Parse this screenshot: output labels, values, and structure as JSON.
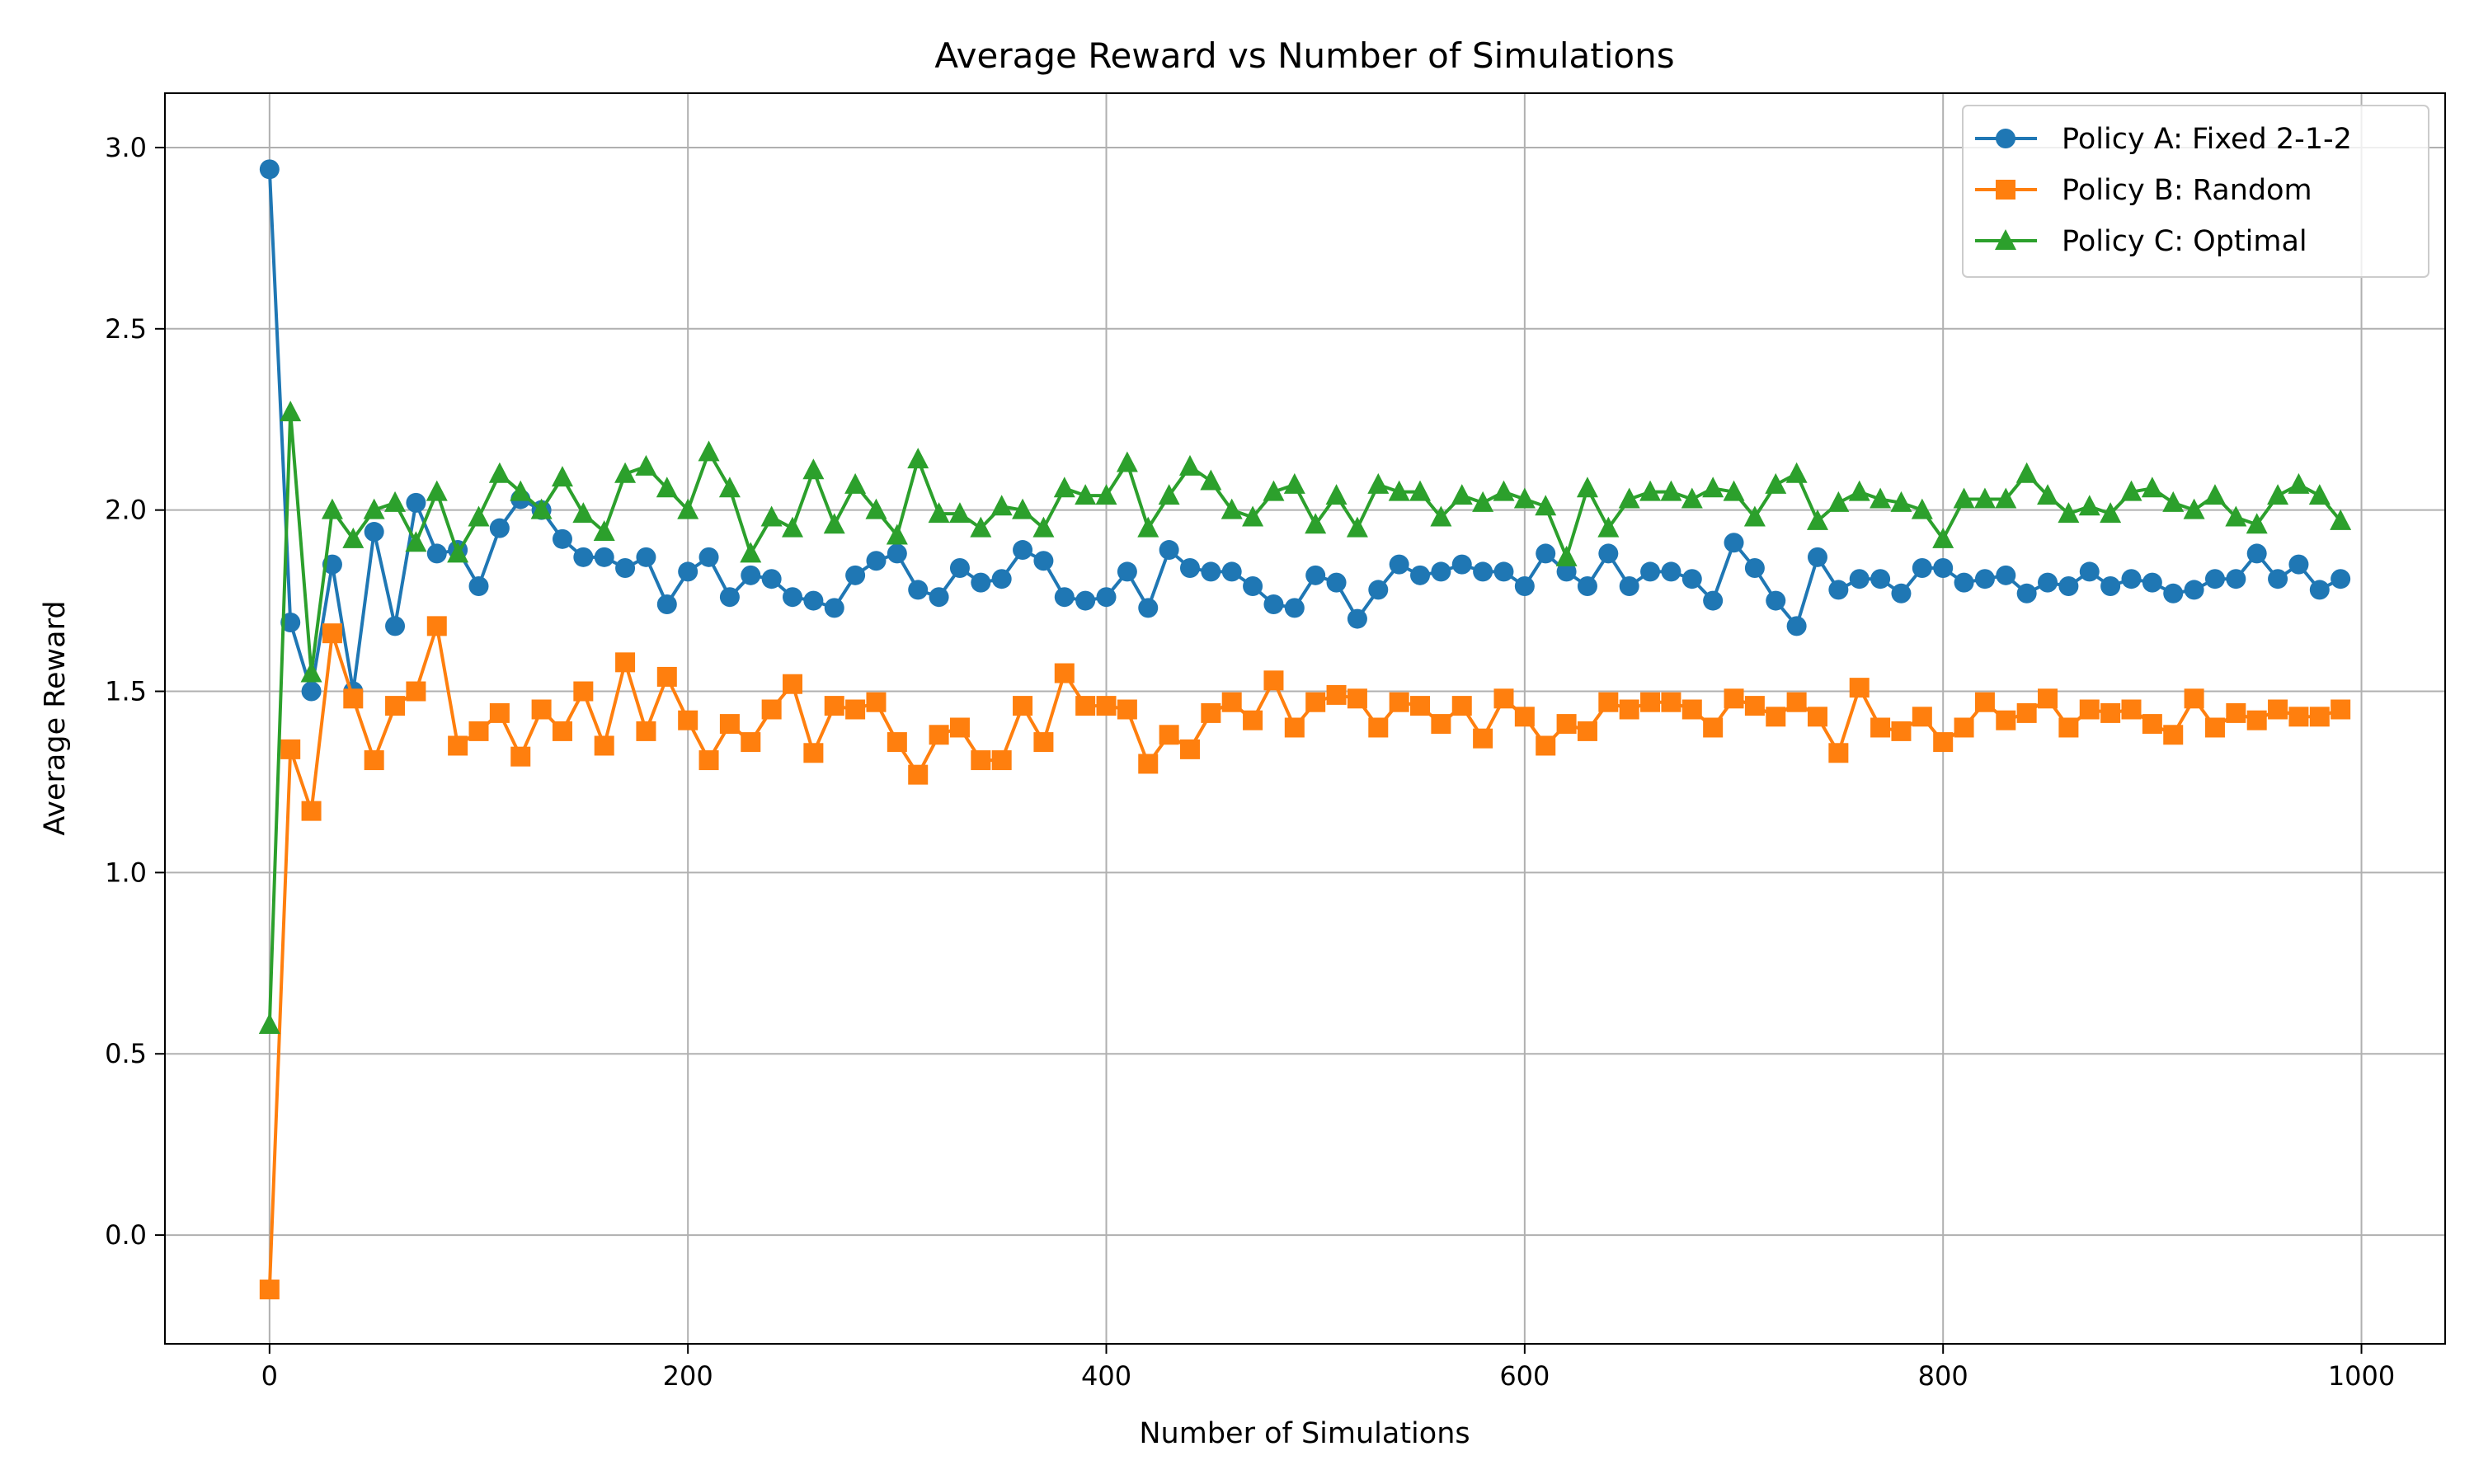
{
  "chart_data": {
    "type": "line",
    "title": "Average Reward vs Number of Simulations",
    "xlabel": "Number of Simulations",
    "ylabel": "Average Reward",
    "xlim": [
      -50,
      1040
    ],
    "ylim": [
      -0.3,
      3.15
    ],
    "xticks": [
      0,
      200,
      400,
      600,
      800,
      1000
    ],
    "xtick_labels": [
      "0",
      "200",
      "400",
      "600",
      "800",
      "1000"
    ],
    "yticks": [
      0.0,
      0.5,
      1.0,
      1.5,
      2.0,
      2.5,
      3.0
    ],
    "ytick_labels": [
      "0.0",
      "0.5",
      "1.0",
      "1.5",
      "2.0",
      "2.5",
      "3.0"
    ],
    "grid": true,
    "legend_position": "top-right",
    "x": [
      0,
      10,
      20,
      30,
      40,
      50,
      60,
      70,
      80,
      90,
      100,
      110,
      120,
      130,
      140,
      150,
      160,
      170,
      180,
      190,
      200,
      210,
      220,
      230,
      240,
      250,
      260,
      270,
      280,
      290,
      300,
      310,
      320,
      330,
      340,
      350,
      360,
      370,
      380,
      390,
      400,
      410,
      420,
      430,
      440,
      450,
      460,
      470,
      480,
      490,
      500,
      510,
      520,
      530,
      540,
      550,
      560,
      570,
      580,
      590,
      600,
      610,
      620,
      630,
      640,
      650,
      660,
      670,
      680,
      690,
      700,
      710,
      720,
      730,
      740,
      750,
      760,
      770,
      780,
      790,
      800,
      810,
      820,
      830,
      840,
      850,
      860,
      870,
      880,
      890,
      900,
      910,
      920,
      930,
      940,
      950,
      960,
      970,
      980,
      990
    ],
    "series": [
      {
        "name": "Policy A: Fixed 2-1-2",
        "color": "#1f77b4",
        "marker": "circle",
        "values": [
          2.94,
          1.69,
          1.5,
          1.85,
          1.5,
          1.94,
          1.68,
          2.02,
          1.88,
          1.89,
          1.79,
          1.95,
          2.03,
          2.0,
          1.92,
          1.87,
          1.87,
          1.84,
          1.87,
          1.74,
          1.83,
          1.87,
          1.76,
          1.82,
          1.81,
          1.76,
          1.75,
          1.73,
          1.82,
          1.86,
          1.88,
          1.78,
          1.76,
          1.84,
          1.8,
          1.81,
          1.89,
          1.86,
          1.76,
          1.75,
          1.76,
          1.83,
          1.73,
          1.89,
          1.84,
          1.83,
          1.83,
          1.79,
          1.74,
          1.73,
          1.82,
          1.8,
          1.7,
          1.78,
          1.85,
          1.82,
          1.83,
          1.85,
          1.83,
          1.83,
          1.79,
          1.88,
          1.83,
          1.79,
          1.88,
          1.79,
          1.83,
          1.83,
          1.81,
          1.75,
          1.91,
          1.84,
          1.75,
          1.68,
          1.87,
          1.78,
          1.81,
          1.81,
          1.77,
          1.84,
          1.84,
          1.8,
          1.81,
          1.82,
          1.77,
          1.8,
          1.79,
          1.83,
          1.79,
          1.81,
          1.8,
          1.77,
          1.78,
          1.81,
          1.81,
          1.88,
          1.81,
          1.85,
          1.78,
          1.81
        ]
      },
      {
        "name": "Policy B: Random",
        "color": "#ff7f0e",
        "marker": "square",
        "values": [
          -0.15,
          1.34,
          1.17,
          1.66,
          1.48,
          1.31,
          1.46,
          1.5,
          1.68,
          1.35,
          1.39,
          1.44,
          1.32,
          1.45,
          1.39,
          1.5,
          1.35,
          1.58,
          1.39,
          1.54,
          1.42,
          1.31,
          1.41,
          1.36,
          1.45,
          1.52,
          1.33,
          1.46,
          1.45,
          1.47,
          1.36,
          1.27,
          1.38,
          1.4,
          1.31,
          1.31,
          1.46,
          1.36,
          1.55,
          1.46,
          1.46,
          1.45,
          1.3,
          1.38,
          1.34,
          1.44,
          1.47,
          1.42,
          1.53,
          1.4,
          1.47,
          1.49,
          1.48,
          1.4,
          1.47,
          1.46,
          1.41,
          1.46,
          1.37,
          1.48,
          1.43,
          1.35,
          1.41,
          1.39,
          1.47,
          1.45,
          1.47,
          1.47,
          1.45,
          1.4,
          1.48,
          1.46,
          1.43,
          1.47,
          1.43,
          1.33,
          1.51,
          1.4,
          1.39,
          1.43,
          1.36,
          1.4,
          1.47,
          1.42,
          1.44,
          1.48,
          1.4,
          1.45,
          1.44,
          1.45,
          1.41,
          1.38,
          1.48,
          1.4,
          1.44,
          1.42,
          1.45,
          1.43,
          1.43,
          1.45
        ]
      },
      {
        "name": "Policy C: Optimal",
        "color": "#2ca02c",
        "marker": "triangle",
        "values": [
          0.58,
          2.27,
          1.55,
          2.0,
          1.92,
          2.0,
          2.02,
          1.91,
          2.05,
          1.88,
          1.98,
          2.1,
          2.05,
          2.0,
          2.09,
          1.99,
          1.94,
          2.1,
          2.12,
          2.06,
          2.0,
          2.16,
          2.06,
          1.88,
          1.98,
          1.95,
          2.11,
          1.96,
          2.07,
          2.0,
          1.93,
          2.14,
          1.99,
          1.99,
          1.95,
          2.01,
          2.0,
          1.95,
          2.06,
          2.04,
          2.04,
          2.13,
          1.95,
          2.04,
          2.12,
          2.08,
          2.0,
          1.98,
          2.05,
          2.07,
          1.96,
          2.04,
          1.95,
          2.07,
          2.05,
          2.05,
          1.98,
          2.04,
          2.02,
          2.05,
          2.03,
          2.01,
          1.87,
          2.06,
          1.95,
          2.03,
          2.05,
          2.05,
          2.03,
          2.06,
          2.05,
          1.98,
          2.07,
          2.1,
          1.97,
          2.02,
          2.05,
          2.03,
          2.02,
          2.0,
          1.92,
          2.03,
          2.03,
          2.03,
          2.1,
          2.04,
          1.99,
          2.01,
          1.99,
          2.05,
          2.06,
          2.02,
          2.0,
          2.04,
          1.98,
          1.96,
          2.04,
          2.07,
          2.04,
          1.97
        ]
      }
    ]
  }
}
